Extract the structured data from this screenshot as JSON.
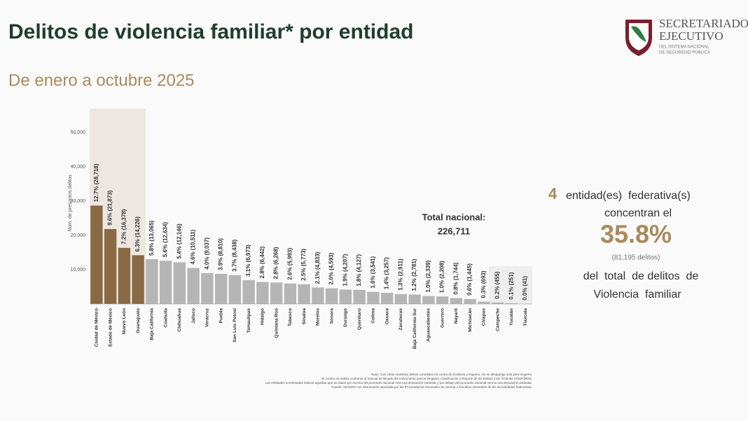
{
  "header": {
    "title": "Delitos de violencia familiar* por entidad",
    "subtitle": "De enero a octubre 2025",
    "logo_line1": "SECRETARIADO",
    "logo_line2": "EJECUTIVO",
    "logo_line3": "DEL SISTEMA NACIONAL",
    "logo_line4": "DE SEGURIDAD PÚBLICA"
  },
  "chart_data": {
    "type": "bar",
    "y_label": "Núm. de presuntos delitos",
    "categories": [
      "Ciudad de México",
      "Estado de México",
      "Nuevo León",
      "Guanajuato",
      "Baja California",
      "Coahuila",
      "Chihuahua",
      "Jalisco",
      "Veracruz",
      "Puebla",
      "San Luis Potosí",
      "Tamaulipas",
      "Hidalgo",
      "Quintana Roo",
      "Tabasco",
      "Sinaloa",
      "Morelos",
      "Sonora",
      "Durango",
      "Querétaro",
      "Colima",
      "Oaxaca",
      "Zacatecas",
      "Baja California Sur",
      "Aguascalientes",
      "Guerrero",
      "Nayarit",
      "Michoacán",
      "Chiapas",
      "Campeche",
      "Yucatán",
      "Tlaxcala"
    ],
    "values": [
      28718,
      21873,
      16378,
      14226,
      13065,
      12634,
      12146,
      10511,
      9037,
      8810,
      8438,
      6973,
      6442,
      6268,
      5993,
      5773,
      4833,
      4593,
      4207,
      4127,
      3541,
      3257,
      2911,
      2781,
      2339,
      2208,
      1744,
      1445,
      693,
      455,
      251,
      41
    ],
    "value_labels": [
      "12.7% (28,718)",
      "9.6% (21,873)",
      "7.2% (16,378)",
      "6.3% (14,226)",
      "5.8% (13,065)",
      "5.6% (12,634)",
      "5.4% (12,146)",
      "4.6% (10,511)",
      "4.0% (9,037)",
      "3.9% (8,810)",
      "3.7% (8,438)",
      "3.1% (6,973)",
      "2.8% (6,442)",
      "2.8% (6,268)",
      "2.6% (5,993)",
      "2.5% (5,773)",
      "2.1% (4,833)",
      "2.0% (4,593)",
      "1.9% (4,207)",
      "1.8% (4,127)",
      "1.6% (3,541)",
      "1.4% (3,257)",
      "1.3% (2,911)",
      "1.2% (2,781)",
      "1.0% (2,339)",
      "1.0% (2,208)",
      "0.8% (1,744)",
      "0.6% (1,445)",
      "0.3% (693)",
      "0.2% (455)",
      "0.1% (251)",
      "0.0% (41)"
    ],
    "colors": [
      "#8a6a44",
      "#8a6a44",
      "#8a6a44",
      "#8a6a44",
      "#b5b5b5",
      "#b5b5b5",
      "#b5b5b5",
      "#b5b5b5",
      "#b5b5b5",
      "#b5b5b5",
      "#b5b5b5",
      "#b5b5b5",
      "#b5b5b5",
      "#b5b5b5",
      "#b5b5b5",
      "#b5b5b5",
      "#b5b5b5",
      "#b5b5b5",
      "#b5b5b5",
      "#b5b5b5",
      "#b5b5b5",
      "#b5b5b5",
      "#b5b5b5",
      "#b5b5b5",
      "#b5b5b5",
      "#b5b5b5",
      "#b5b5b5",
      "#b5b5b5",
      "#b5b5b5",
      "#b5b5b5",
      "#b5b5b5",
      "#b5b5b5"
    ],
    "ylim": [
      0,
      57000
    ],
    "yticks": [
      {
        "value": 10000,
        "label": "10,000"
      },
      {
        "value": 20000,
        "label": "20,000"
      },
      {
        "value": 30000,
        "label": "30,000"
      },
      {
        "value": 40000,
        "label": "40,000"
      },
      {
        "value": 50000,
        "label": "50,000"
      }
    ],
    "grid": false,
    "annotations": [
      "Total nacional:",
      "226,711"
    ]
  },
  "callout": {
    "count": 4,
    "line1": "entidad(es)  federativa(s)",
    "line2": "concentran el",
    "share": "35.8%",
    "detail": "(81,195 delitos)",
    "line3": "del  total  de delitos  de",
    "line4": "Violencia  familiar"
  },
  "notes": [
    "Nota: *Las cifras muestran delitos cometidos en contra de hombres y mujeres. No se desagrega solo para mujeres.",
    "El conteo se realiza conforme al manual de llenado del Instrumento para el Registro, Clasificación y Reporte de los Delitos y las Víctimas CNSP/38/15.",
    "Las entidades sombreadas indican aquellas que se sitúan por encima del promedio nacional más una desviación estándar y por debajo del promedio nacional menos una desviación estándar.",
    "Fuente: SESNSP con información reportada por las Procuradurías Generales de Justicia o Fiscalías Generales de las 32 entidades federativas."
  ]
}
